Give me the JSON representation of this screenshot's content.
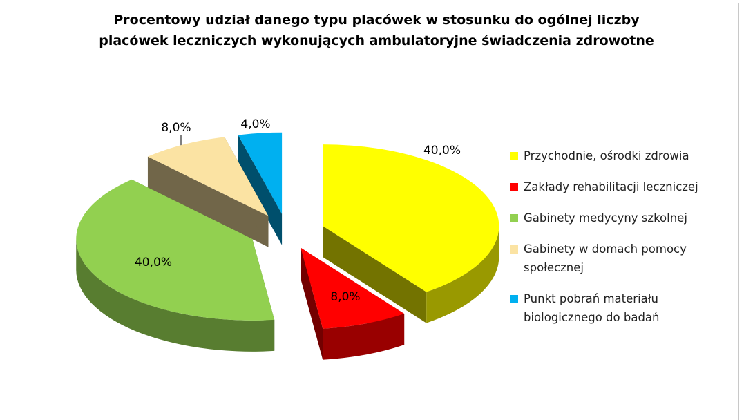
{
  "chart_data": {
    "type": "pie",
    "title": "Procentowy udział danego typu placówek w stosunku do ogólnej liczby placówek leczniczych wykonujących ambulatoryjne świadczenia zdrowotne",
    "categories": [
      "Przychodnie, ośrodki zdrowia",
      "Zakłady rehabilitacji leczniczej",
      "Gabinety medycyny szkolnej",
      "Gabinety w domach pomocy społecznej",
      "Punkt pobrań materiału biologicznego do badań"
    ],
    "values": [
      40,
      8,
      40,
      8,
      4
    ],
    "value_labels": [
      "40,0%",
      "8,0%",
      "40,0%",
      "8,0%",
      "4,0%"
    ],
    "colors": [
      "#ffff00",
      "#ff0000",
      "#92d050",
      "#fbe3a3",
      "#00b0f0"
    ],
    "legend": "right"
  }
}
